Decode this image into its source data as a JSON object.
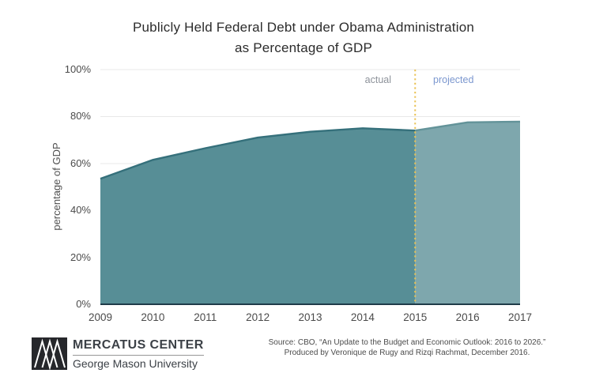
{
  "title": {
    "line1": "Publicly Held Federal Debt under Obama Administration",
    "line2": "as Percentage of GDP"
  },
  "chart_data": {
    "type": "area",
    "title": "Publicly Held Federal Debt under Obama Administration as Percentage of GDP",
    "xlabel": "",
    "ylabel": "percentage of GDP",
    "ylim": [
      0,
      100
    ],
    "xlim": [
      2009,
      2017
    ],
    "grid": true,
    "yticks": [
      {
        "value": 0,
        "label": "0%"
      },
      {
        "value": 20,
        "label": "20%"
      },
      {
        "value": 40,
        "label": "40%"
      },
      {
        "value": 60,
        "label": "60%"
      },
      {
        "value": 80,
        "label": "80%"
      },
      {
        "value": 100,
        "label": "100%"
      }
    ],
    "xticks": [
      {
        "value": 2009,
        "label": "2009"
      },
      {
        "value": 2010,
        "label": "2010"
      },
      {
        "value": 2011,
        "label": "2011"
      },
      {
        "value": 2012,
        "label": "2012"
      },
      {
        "value": 2013,
        "label": "2013"
      },
      {
        "value": 2014,
        "label": "2014"
      },
      {
        "value": 2015,
        "label": "2015"
      },
      {
        "value": 2016,
        "label": "2016"
      },
      {
        "value": 2017,
        "label": "2017"
      }
    ],
    "series": [
      {
        "name": "actual",
        "x": [
          2009,
          2010,
          2011,
          2012,
          2013,
          2014,
          2015
        ],
        "values": [
          53.5,
          61.5,
          66.5,
          71,
          73.5,
          75,
          74
        ],
        "fill": "#578e96",
        "stroke": "#35707b"
      },
      {
        "name": "projected",
        "x": [
          2015,
          2016,
          2017
        ],
        "values": [
          74,
          77.5,
          77.8
        ],
        "fill": "#7ea7ad",
        "stroke": "#639399"
      }
    ],
    "divider": {
      "x": 2015,
      "color": "#eac255",
      "style": "dotted"
    },
    "annotations": {
      "actual": "actual",
      "projected": "projected"
    },
    "annotation_colors": {
      "actual": "#8d929a",
      "projected": "#7b97cf"
    },
    "gridline_color": "#e8e8e8",
    "baseline_color": "#1f3c49"
  },
  "footer": {
    "brand_name": "MERCATUS CENTER",
    "brand_subtitle": "George Mason University",
    "source_line1": "Source: CBO, “An Update to the Budget and Economic Outlook: 2016 to 2026.”",
    "source_line2": "Produced by Veronique de Rugy and Rizqi Rachmat, December 2016."
  }
}
